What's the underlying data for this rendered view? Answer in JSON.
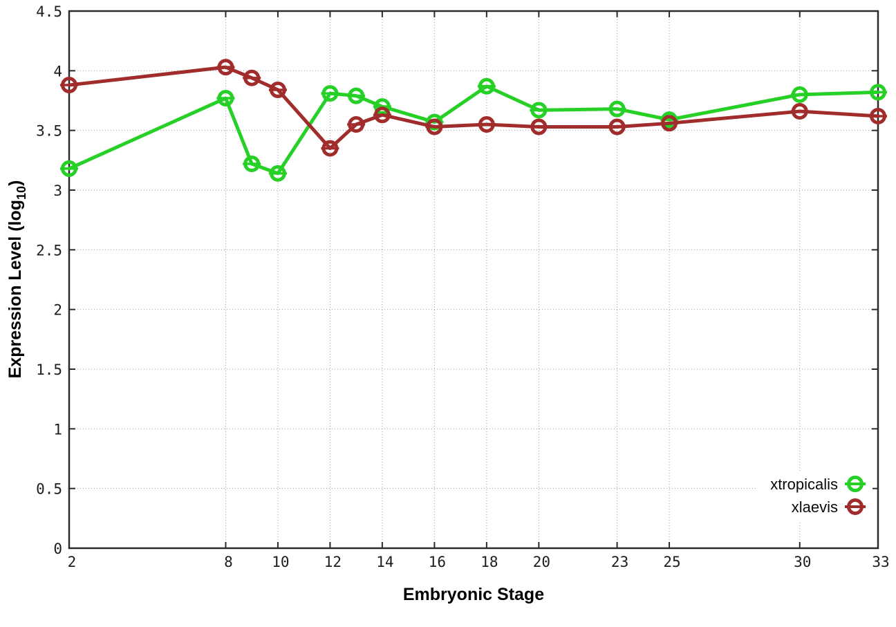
{
  "page": {
    "background": "#ffffff",
    "axis_color": "#2b2b2b",
    "grid_color": "#999999",
    "tick_label_color": "#1c1c1c"
  },
  "chart_data": {
    "type": "line",
    "title": "",
    "xlabel": "Embryonic Stage",
    "ylabel": "Expression Level (log10)",
    "ylabel_parts": {
      "prefix": "Expression Level (log",
      "sub": "10",
      "suffix": ")"
    },
    "x": [
      2,
      8,
      9,
      10,
      12,
      13,
      14,
      16,
      18,
      20,
      23,
      25,
      30,
      33
    ],
    "series": [
      {
        "name": "xtropicalis",
        "color": "#26d026",
        "marker": "open-circle-with-errorbar-cap",
        "values": [
          3.18,
          3.77,
          3.22,
          3.14,
          3.81,
          3.79,
          3.7,
          3.57,
          3.87,
          3.67,
          3.68,
          3.59,
          3.8,
          3.82
        ]
      },
      {
        "name": "xlaevis",
        "color": "#a02c2c",
        "marker": "open-circle-with-errorbar-cap",
        "values": [
          3.88,
          4.03,
          3.94,
          3.84,
          3.35,
          3.55,
          3.63,
          3.53,
          3.55,
          3.53,
          3.53,
          3.56,
          3.66,
          3.62
        ]
      }
    ],
    "x_ticks": [
      2,
      8,
      10,
      12,
      14,
      16,
      18,
      20,
      23,
      25,
      30,
      33
    ],
    "x_tick_labels": [
      "2",
      "8",
      "10",
      "12",
      "14",
      "16",
      "18",
      "20",
      "23",
      "25",
      "30",
      "33"
    ],
    "y_ticks": [
      0,
      0.5,
      1,
      1.5,
      2,
      2.5,
      3,
      3.5,
      4,
      4.5
    ],
    "y_tick_labels": [
      "0",
      "0.5",
      "1",
      "1.5",
      "2",
      "2.5",
      "3",
      "3.5",
      "4",
      "4.5"
    ],
    "xlim": [
      2,
      33
    ],
    "ylim": [
      0,
      4.5
    ],
    "grid": true,
    "grid_style": "dotted",
    "legend_position": "bottom-right",
    "legend_entries": [
      "xtropicalis",
      "xlaevis"
    ]
  }
}
